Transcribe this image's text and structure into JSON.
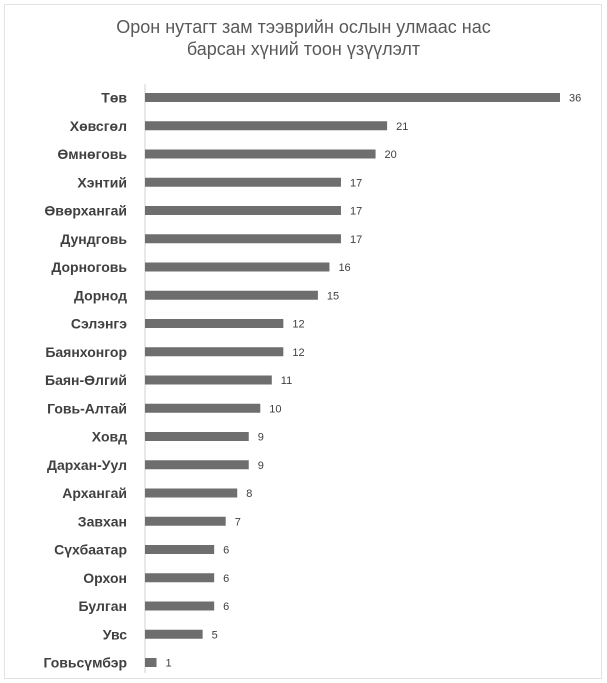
{
  "chart_data": {
    "type": "bar",
    "orientation": "horizontal",
    "title_lines": [
      "Орон нутагт зам тээврийн ослын улмаас нас",
      "барсан хүний тоон үзүүлэлт"
    ],
    "xlabel": "",
    "ylabel": "",
    "grid": false,
    "legend": "none",
    "categories": [
      "Төв",
      "Хөвсгөл",
      "Өмнөговь",
      "Хэнтий",
      "Өвөрхангай",
      "Дундговь",
      "Дорноговь",
      "Дорнод",
      "Сэлэнгэ",
      "Баянхонгор",
      "Баян-Өлгий",
      "Говь-Алтай",
      "Ховд",
      "Дархан-Уул",
      "Архангай",
      "Завхан",
      "Сүхбаатар",
      "Орхон",
      "Булган",
      "Увс",
      "Говьсүмбэр"
    ],
    "values": [
      36,
      21,
      20,
      17,
      17,
      17,
      16,
      15,
      12,
      12,
      11,
      10,
      9,
      9,
      8,
      7,
      6,
      6,
      6,
      5,
      1
    ],
    "bar_color": "#6e6e6e",
    "xlim": [
      0,
      36
    ]
  }
}
